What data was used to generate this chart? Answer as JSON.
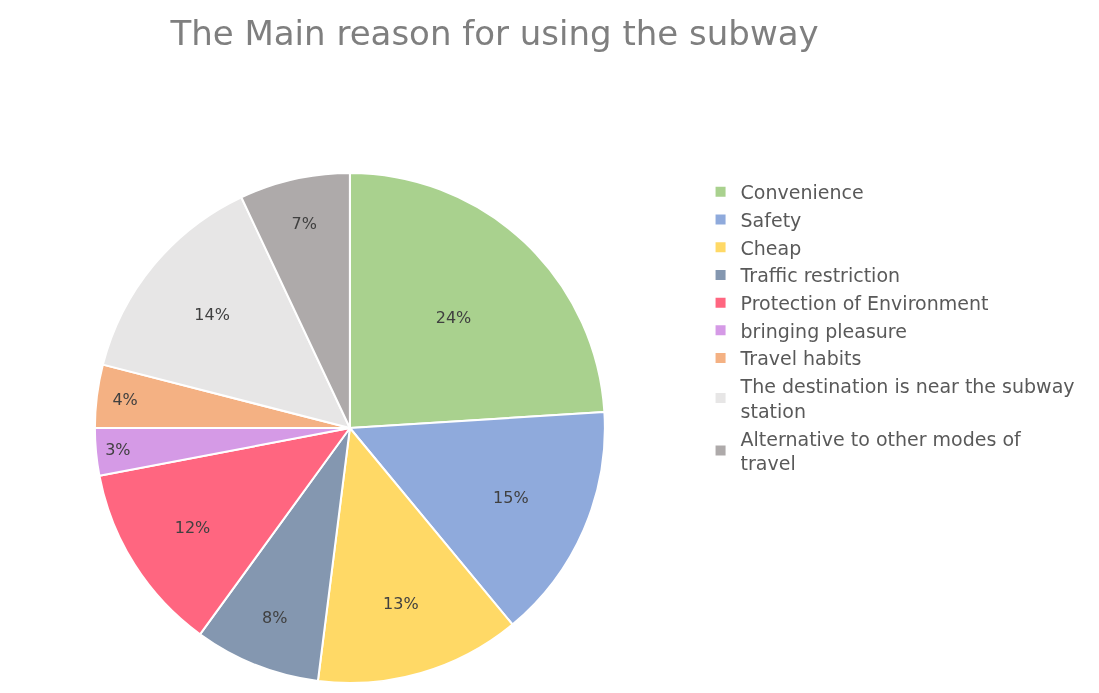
{
  "chart_data": {
    "type": "pie",
    "title": "The Main reason for using the subway",
    "categories": [
      "Convenience",
      "Safety",
      "Cheap",
      "Traffic restriction",
      "Protection of Environment",
      "bringing pleasure",
      "Travel habits",
      "The destination is near the subway station",
      "Alternative to other modes of travel"
    ],
    "values": [
      24,
      15,
      13,
      8,
      12,
      3,
      4,
      14,
      7
    ],
    "value_labels": [
      "24%",
      "15%",
      "13%",
      "8%",
      "12%",
      "3%",
      "4%",
      "14%",
      "7%"
    ],
    "colors": [
      "#a9d18e",
      "#8faadc",
      "#ffd966",
      "#8497b0",
      "#ff6680",
      "#d59ae6",
      "#f4b183",
      "#e7e6e6",
      "#aeaaaa"
    ],
    "legend": "right"
  }
}
